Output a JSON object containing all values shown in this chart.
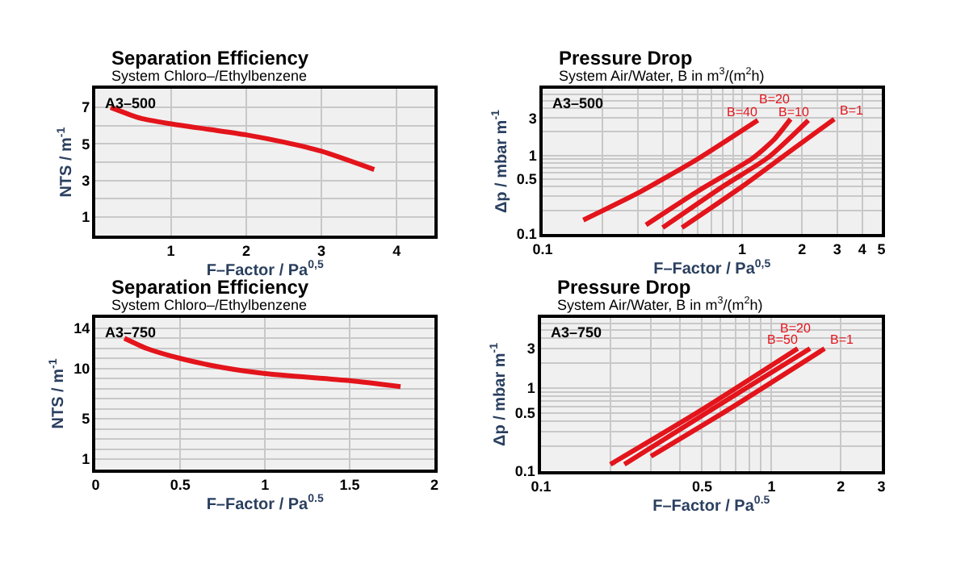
{
  "chart_data": [
    {
      "type": "line",
      "title": "Separation Efficiency",
      "subtitle": "System Chloro–/Ethylbenzene",
      "xlabel": "F–Factor / Pa$^{0,5}$",
      "ylabel": "NTS / m$^{-1}$",
      "annotations": [
        "A3–500"
      ],
      "xlim": [
        0,
        4.5
      ],
      "ylim": [
        0,
        8
      ],
      "xticks": [
        1,
        2,
        3,
        4
      ],
      "yticks": [
        {
          "value": 0,
          "label": null
        },
        1,
        {
          "value": 2,
          "label": null
        },
        3,
        {
          "value": 4,
          "label": null
        },
        5,
        {
          "value": 6,
          "label": null
        },
        7,
        {
          "value": 8,
          "label": null
        }
      ],
      "grid": true,
      "series": [
        {
          "color": "#e3141b",
          "x": [
            0.2,
            0.6,
            1,
            1.5,
            2,
            2.5,
            3,
            3.7
          ],
          "values": [
            7.0,
            6.4,
            6.1,
            5.8,
            5.5,
            5.1,
            4.6,
            3.6
          ]
        }
      ]
    },
    {
      "type": "line",
      "title": "Pressure Drop",
      "subtitle": "System Air/Water, B in m$^{3}$/(m$^{2}$h)",
      "xlabel": "F–Factor / Pa$^{0,5}$",
      "ylabel": "Δp / mbar m$^{-1}$",
      "annotations": [
        "A3–500"
      ],
      "log": "xy",
      "xlim": [
        0.1,
        5
      ],
      "ylim": [
        0.1,
        7
      ],
      "xticks": [
        0.1,
        {
          "value": 0.2,
          "label": null
        },
        {
          "value": 0.3,
          "label": null
        },
        {
          "value": 0.4,
          "label": null
        },
        {
          "value": 0.5,
          "label": null
        },
        {
          "value": 0.6,
          "label": null
        },
        {
          "value": 0.7,
          "label": null
        },
        {
          "value": 0.8,
          "label": null
        },
        {
          "value": 0.9,
          "label": null
        },
        1,
        2,
        3,
        4,
        5
      ],
      "yticks": [
        0.1,
        {
          "value": 0.2,
          "label": null
        },
        {
          "value": 0.3,
          "label": null
        },
        {
          "value": 0.4,
          "label": null
        },
        0.5,
        {
          "value": 0.6,
          "label": null
        },
        {
          "value": 0.7,
          "label": null
        },
        {
          "value": 0.8,
          "label": null
        },
        {
          "value": 0.9,
          "label": null
        },
        1,
        {
          "value": 2,
          "label": null
        },
        3,
        {
          "value": 4,
          "label": null
        },
        {
          "value": 5,
          "label": null
        },
        {
          "value": 6,
          "label": null
        }
      ],
      "grid": true,
      "series": [
        {
          "name": "B=40",
          "color": "#e3141b",
          "x": [
            0.16,
            0.3,
            0.6,
            1.2
          ],
          "values": [
            0.15,
            0.33,
            0.9,
            2.8
          ]
        },
        {
          "name": "B=20",
          "color": "#e3141b",
          "x": [
            0.33,
            0.6,
            1.13,
            1.45,
            1.75
          ],
          "values": [
            0.13,
            0.35,
            0.92,
            1.6,
            2.9
          ]
        },
        {
          "name": "B=10",
          "color": "#e3141b",
          "x": [
            0.4,
            0.8,
            1.36,
            2.15
          ],
          "values": [
            0.12,
            0.4,
            0.95,
            2.8
          ]
        },
        {
          "name": "B=1",
          "color": "#e3141b",
          "x": [
            0.5,
            1,
            1.8,
            2.9
          ],
          "values": [
            0.12,
            0.4,
            1.2,
            2.9
          ]
        }
      ]
    },
    {
      "type": "line",
      "title": "Separation Efficiency",
      "subtitle": "System Chloro–/Ethylbenzene",
      "xlabel": "F–Factor / Pa$^{0.5}$",
      "ylabel": "NTS / m$^{-1}$",
      "annotations": [
        "A3–750"
      ],
      "xlim": [
        0,
        2
      ],
      "ylim": [
        0,
        15
      ],
      "xticks": [
        0,
        0.5,
        1,
        1.5,
        2
      ],
      "yticks": [
        1,
        {
          "value": 2,
          "label": null
        },
        {
          "value": 3,
          "label": null
        },
        {
          "value": 4,
          "label": null
        },
        5,
        {
          "value": 6,
          "label": null
        },
        {
          "value": 7,
          "label": null
        },
        {
          "value": 8,
          "label": null
        },
        {
          "value": 9,
          "label": null
        },
        10,
        {
          "value": 11,
          "label": null
        },
        {
          "value": 12,
          "label": null
        },
        {
          "value": 13,
          "label": null
        },
        14
      ],
      "grid": true,
      "series": [
        {
          "color": "#e3141b",
          "x": [
            0.17,
            0.3,
            0.5,
            0.75,
            1,
            1.5,
            1.8
          ],
          "values": [
            13.0,
            12.0,
            11.0,
            10.1,
            9.5,
            8.8,
            8.2
          ]
        }
      ]
    },
    {
      "type": "line",
      "title": "Pressure Drop",
      "subtitle": "System Air/Water, B in m$^{3}$/(m$^{2}$h)",
      "xlabel": "F–Factor / Pa$^{0.5}$",
      "ylabel": "Δp / mbar m$^{-1}$",
      "annotations": [
        "A3–750"
      ],
      "log": "xy",
      "xlim": [
        0.1,
        3
      ],
      "ylim": [
        0.1,
        7
      ],
      "xticks": [
        0.1,
        {
          "value": 0.2,
          "label": null
        },
        {
          "value": 0.3,
          "label": null
        },
        {
          "value": 0.4,
          "label": null
        },
        0.5,
        {
          "value": 0.6,
          "label": null
        },
        {
          "value": 0.7,
          "label": null
        },
        {
          "value": 0.8,
          "label": null
        },
        {
          "value": 0.9,
          "label": null
        },
        1,
        2,
        3
      ],
      "yticks": [
        0.1,
        {
          "value": 0.2,
          "label": null
        },
        {
          "value": 0.3,
          "label": null
        },
        {
          "value": 0.4,
          "label": null
        },
        0.5,
        {
          "value": 0.6,
          "label": null
        },
        {
          "value": 0.7,
          "label": null
        },
        {
          "value": 0.8,
          "label": null
        },
        {
          "value": 0.9,
          "label": null
        },
        1,
        {
          "value": 2,
          "label": null
        },
        3,
        {
          "value": 4,
          "label": null
        },
        {
          "value": 5,
          "label": null
        },
        {
          "value": 6,
          "label": null
        }
      ],
      "grid": true,
      "series": [
        {
          "name": "B=50",
          "color": "#e3141b",
          "x": [
            0.2,
            0.5,
            1.3
          ],
          "values": [
            0.12,
            0.55,
            3.0
          ]
        },
        {
          "name": "B=20",
          "color": "#e3141b",
          "x": [
            0.23,
            0.55,
            1.47
          ],
          "values": [
            0.12,
            0.55,
            3.0
          ]
        },
        {
          "name": "B=1",
          "color": "#e3141b",
          "x": [
            0.3,
            0.65,
            1.7
          ],
          "values": [
            0.15,
            0.55,
            3.0
          ]
        }
      ]
    }
  ]
}
